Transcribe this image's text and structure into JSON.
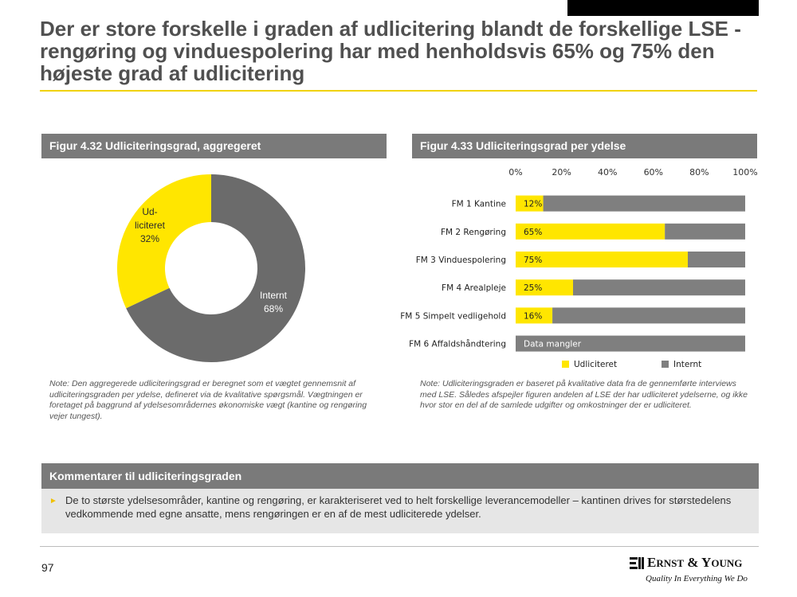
{
  "slide": {
    "title": "Der er store forskelle i graden af udlicitering blandt de forskellige LSE - rengøring og vinduespolering har med henholdsvis 65% og 75% den højeste grad af udlicitering",
    "page_number": "97"
  },
  "colors": {
    "accent": "#ffe600",
    "gray": "#7a7a7a",
    "bar_internal": "#7f7f7f"
  },
  "left_panel": {
    "header": "Figur 4.32 Udliciteringsgrad, aggregeret",
    "note": "Note: Den aggregerede udliciteringsgrad er beregnet som et vægtet gennemsnit af udliciteringsgraden per ydelse, defineret via de kvalitative spørgsmål. Vægtningen er foretaget på baggrund af ydelsesområdernes økonomiske vægt (kantine og rengøring vejer tungest)."
  },
  "right_panel": {
    "header": "Figur 4.33 Udliciteringsgrad per ydelse",
    "note": "Note: Udliciteringsgraden er baseret på kvalitative data fra de gennemførte interviews med LSE. Således afspejler figuren andelen af LSE der har udliciteret ydelserne, og ikke hvor stor en del af de samlede udgifter og omkostninger der er udliciteret."
  },
  "chart_data": [
    {
      "type": "pie",
      "style": "donut",
      "slices": [
        {
          "label_lines": [
            "Ud-",
            "liciteret",
            "32%"
          ],
          "value": 32,
          "color": "#ffe600"
        },
        {
          "label_lines": [
            "Internt",
            "68%"
          ],
          "value": 68,
          "color": "#6b6b6b"
        }
      ]
    },
    {
      "type": "bar",
      "orientation": "horizontal",
      "stacked": true,
      "xlim": [
        0,
        100
      ],
      "xticks": [
        "0%",
        "20%",
        "40%",
        "60%",
        "80%",
        "100%"
      ],
      "categories": [
        "FM 1 Kantine",
        "FM 2 Rengøring",
        "FM 3 Vinduespolering",
        "FM 4 Arealpleje",
        "FM 5 Simpelt vedligehold",
        "FM 6 Affaldshåndtering"
      ],
      "series": [
        {
          "name": "Udliciteret",
          "color": "#ffe600",
          "values": [
            12,
            65,
            75,
            25,
            16,
            0
          ],
          "data_labels": [
            "12%",
            "65%",
            "75%",
            "25%",
            "16%",
            ""
          ]
        },
        {
          "name": "Internt",
          "color": "#7f7f7f",
          "values": [
            88,
            35,
            25,
            75,
            84,
            100
          ]
        }
      ],
      "annotations": [
        {
          "category": "FM 6 Affaldshåndtering",
          "text": "Data mangler"
        }
      ],
      "legend": "bottom"
    }
  ],
  "comments": {
    "header": "Kommentarer til udliciteringsgraden",
    "bullets": [
      "De to største ydelsesområder, kantine og rengøring, er karakteriseret ved to helt forskellige leverancemodeller – kantinen drives for størstedelens vedkommende med egne ansatte, mens rengøringen er en af de mest udliciterede ydelser."
    ]
  },
  "logo": {
    "name": "Ernst & Young",
    "tagline": "Quality In Everything We Do"
  }
}
